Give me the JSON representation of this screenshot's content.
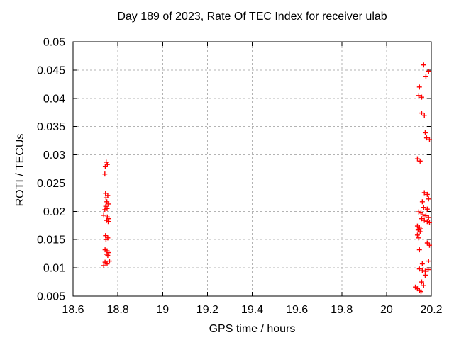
{
  "chart_data": {
    "type": "scatter",
    "title": "Day 189 of 2023, Rate Of TEC Index for receiver ulab",
    "xlabel": "GPS time / hours",
    "ylabel": "ROTI / TECUs",
    "xlim": [
      18.6,
      20.2
    ],
    "ylim": [
      0.005,
      0.05
    ],
    "x_ticks": [
      18.6,
      18.8,
      19,
      19.2,
      19.4,
      19.6,
      19.8,
      20,
      20.2
    ],
    "x_tick_labels": [
      "18.6",
      "18.8",
      "19",
      "19.2",
      "19.4",
      "19.6",
      "19.8",
      "20",
      "20.2"
    ],
    "y_ticks": [
      0.005,
      0.01,
      0.015,
      0.02,
      0.025,
      0.03,
      0.035,
      0.04,
      0.045,
      0.05
    ],
    "y_tick_labels": [
      "0.005",
      "0.01",
      "0.015",
      "0.02",
      "0.025",
      "0.03",
      "0.035",
      "0.04",
      "0.045",
      "0.05"
    ],
    "grid": true,
    "legend": "none",
    "marker": {
      "shape": "plus",
      "color": "#ff0000",
      "size": 7
    },
    "colors": {
      "background": "#ffffff",
      "axis": "#000000",
      "grid": "#b3b3b3",
      "text": "#000000"
    },
    "series": [
      {
        "name": "ROTI",
        "points": [
          [
            18.748,
            0.0287
          ],
          [
            18.753,
            0.0283
          ],
          [
            18.744,
            0.0279
          ],
          [
            18.742,
            0.0266
          ],
          [
            18.745,
            0.0232
          ],
          [
            18.755,
            0.0228
          ],
          [
            18.747,
            0.0224
          ],
          [
            18.751,
            0.0217
          ],
          [
            18.758,
            0.0213
          ],
          [
            18.746,
            0.0209
          ],
          [
            18.752,
            0.0205
          ],
          [
            18.742,
            0.0203
          ],
          [
            18.737,
            0.0193
          ],
          [
            18.753,
            0.019
          ],
          [
            18.76,
            0.0187
          ],
          [
            18.75,
            0.0184
          ],
          [
            18.757,
            0.0182
          ],
          [
            18.745,
            0.0157
          ],
          [
            18.755,
            0.0153
          ],
          [
            18.747,
            0.015
          ],
          [
            18.743,
            0.0132
          ],
          [
            18.752,
            0.013
          ],
          [
            18.76,
            0.0127
          ],
          [
            18.748,
            0.0124
          ],
          [
            18.755,
            0.0122
          ],
          [
            18.763,
            0.0112
          ],
          [
            18.743,
            0.011
          ],
          [
            18.752,
            0.0107
          ],
          [
            18.737,
            0.0104
          ],
          [
            20.166,
            0.0459
          ],
          [
            20.188,
            0.0448
          ],
          [
            20.176,
            0.0439
          ],
          [
            20.147,
            0.042
          ],
          [
            20.144,
            0.0405
          ],
          [
            20.157,
            0.0402
          ],
          [
            20.157,
            0.0374
          ],
          [
            20.169,
            0.037
          ],
          [
            20.173,
            0.0339
          ],
          [
            20.179,
            0.033
          ],
          [
            20.192,
            0.0327
          ],
          [
            20.138,
            0.0293
          ],
          [
            20.15,
            0.0289
          ],
          [
            20.169,
            0.0233
          ],
          [
            20.182,
            0.023
          ],
          [
            20.188,
            0.0222
          ],
          [
            20.16,
            0.0217
          ],
          [
            20.166,
            0.0207
          ],
          [
            20.182,
            0.0204
          ],
          [
            20.144,
            0.0199
          ],
          [
            20.154,
            0.0197
          ],
          [
            20.163,
            0.0194
          ],
          [
            20.176,
            0.0192
          ],
          [
            20.188,
            0.0189
          ],
          [
            20.157,
            0.0187
          ],
          [
            20.169,
            0.0184
          ],
          [
            20.182,
            0.0182
          ],
          [
            20.192,
            0.018
          ],
          [
            20.138,
            0.0174
          ],
          [
            20.147,
            0.0172
          ],
          [
            20.154,
            0.0169
          ],
          [
            20.141,
            0.0167
          ],
          [
            20.15,
            0.0164
          ],
          [
            20.138,
            0.0158
          ],
          [
            20.144,
            0.0153
          ],
          [
            20.182,
            0.0144
          ],
          [
            20.192,
            0.014
          ],
          [
            20.147,
            0.0132
          ],
          [
            20.188,
            0.0112
          ],
          [
            20.16,
            0.0107
          ],
          [
            20.147,
            0.0098
          ],
          [
            20.186,
            0.0097
          ],
          [
            20.16,
            0.0095
          ],
          [
            20.173,
            0.0094
          ],
          [
            20.173,
            0.0087
          ],
          [
            20.157,
            0.0075
          ],
          [
            20.166,
            0.0069
          ],
          [
            20.129,
            0.0066
          ],
          [
            20.138,
            0.0063
          ],
          [
            20.147,
            0.006
          ],
          [
            20.154,
            0.0058
          ]
        ]
      }
    ]
  }
}
